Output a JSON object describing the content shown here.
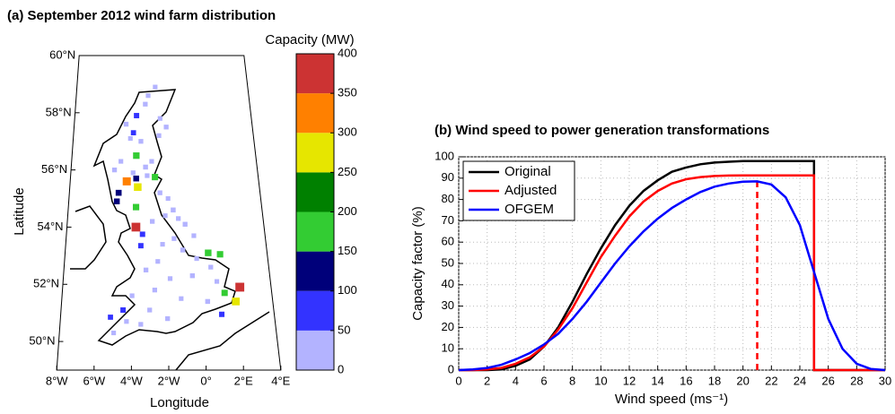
{
  "chart_data": [
    {
      "type": "map-scatter",
      "title": "(a) September 2012 wind farm distribution",
      "xlabel": "Longitude",
      "ylabel": "Latitude",
      "xlim": [
        -8,
        4
      ],
      "ylim": [
        49,
        60
      ],
      "xticks": [
        {
          "value": -8,
          "label": "8°W"
        },
        {
          "value": -6,
          "label": "6°W"
        },
        {
          "value": -4,
          "label": "4°W"
        },
        {
          "value": -2,
          "label": "2°W"
        },
        {
          "value": 0,
          "label": "0°"
        },
        {
          "value": 2,
          "label": "2°E"
        },
        {
          "value": 4,
          "label": "4°E"
        }
      ],
      "yticks": [
        {
          "value": 50,
          "label": "50°N"
        },
        {
          "value": 52,
          "label": "52°N"
        },
        {
          "value": 54,
          "label": "54°N"
        },
        {
          "value": 56,
          "label": "56°N"
        },
        {
          "value": 58,
          "label": "58°N"
        },
        {
          "value": 60,
          "label": "60°N"
        }
      ],
      "colorbar": {
        "label": "Capacity (MW)",
        "bounds": [
          0,
          50,
          100,
          150,
          200,
          250,
          300,
          350,
          400
        ],
        "ticks": [
          0,
          50,
          100,
          150,
          200,
          250,
          300,
          350,
          400
        ],
        "colors": [
          "#b3b3ff",
          "#3333ff",
          "#00007a",
          "#33cc33",
          "#008000",
          "#e6e600",
          "#ff8000",
          "#cc3333"
        ]
      },
      "lon": [
        -3.8,
        -4.0,
        -3.8,
        -4.4,
        -3.7,
        -3.8,
        -2.6,
        -4.9,
        -5.0,
        -3.8,
        -3.8,
        -3.4,
        -3.5,
        0.5,
        1.2,
        1.3,
        2.2,
        1.9,
        -4.5,
        -5.2,
        1.05,
        -2.5,
        -3.0,
        -3.2,
        -2.2,
        -1.8,
        -2.3,
        -4.5,
        -4.2,
        -3.5,
        -4.8,
        -5.2,
        -3.2,
        -2.8,
        -4.0,
        -3.1,
        -2.3,
        -1.8,
        -1.5,
        -1.2,
        -2.0,
        -2.8,
        -0.8,
        -0.3,
        -1.5,
        -2.2,
        -1.0,
        -0.2,
        0.6,
        -2.5,
        -3.2,
        -1.8,
        -0.5,
        0.9,
        -2.7,
        -4.0,
        -1.2,
        0.3,
        -3.0,
        -4.3,
        -5.0,
        -3.5,
        -2.0
      ],
      "lat": [
        57.9,
        57.3,
        56.5,
        55.6,
        55.4,
        55.7,
        55.75,
        55.2,
        54.9,
        54.7,
        54.0,
        53.75,
        53.35,
        53.1,
        53.05,
        51.7,
        51.9,
        51.4,
        51.1,
        50.85,
        50.95,
        58.9,
        58.6,
        58.3,
        57.8,
        57.5,
        57.2,
        57.6,
        57.1,
        57.0,
        56.3,
        56.0,
        56.1,
        56.3,
        55.9,
        55.8,
        55.2,
        55.0,
        54.6,
        54.3,
        54.4,
        54.2,
        54.1,
        53.7,
        53.6,
        53.4,
        53.2,
        52.9,
        52.6,
        52.8,
        52.5,
        52.2,
        52.3,
        52.1,
        51.8,
        51.6,
        51.5,
        51.4,
        51.1,
        50.7,
        50.3,
        50.6,
        50.8
      ],
      "capacity": [
        75,
        60,
        180,
        320,
        280,
        120,
        170,
        130,
        120,
        170,
        380,
        80,
        75,
        190,
        170,
        160,
        390,
        290,
        80,
        60,
        80,
        10,
        15,
        20,
        12,
        25,
        18,
        30,
        10,
        22,
        14,
        26,
        35,
        12,
        20,
        16,
        28,
        10,
        40,
        18,
        12,
        24,
        30,
        15,
        22,
        10,
        36,
        14,
        20,
        12,
        26,
        18,
        30,
        10,
        22,
        16,
        12,
        34,
        20,
        14,
        10,
        18,
        24
      ]
    },
    {
      "type": "line",
      "title": "(b) Wind speed to power generation transformations",
      "xlabel": "Wind speed (ms⁻¹)",
      "ylabel": "Capacity factor (%)",
      "xlim": [
        0,
        30
      ],
      "ylim": [
        0,
        100
      ],
      "xticks": [
        0,
        2,
        4,
        6,
        8,
        10,
        12,
        14,
        16,
        18,
        20,
        22,
        24,
        26,
        28,
        30
      ],
      "yticks": [
        0,
        10,
        20,
        30,
        40,
        50,
        60,
        70,
        80,
        90,
        100
      ],
      "grid": true,
      "legend": "upper left",
      "x": [
        0,
        1,
        2,
        3,
        4,
        5,
        6,
        7,
        8,
        9,
        10,
        11,
        12,
        13,
        14,
        15,
        16,
        17,
        18,
        19,
        20,
        21,
        22,
        23,
        24,
        25,
        25,
        26,
        27,
        28,
        29,
        30
      ],
      "series": [
        {
          "name": "Original",
          "color": "#000000",
          "values": [
            0,
            0,
            0,
            0.3,
            2,
            5,
            11,
            20,
            32,
            45,
            57,
            68,
            77,
            84,
            89,
            93,
            95,
            96.5,
            97.3,
            97.7,
            98,
            98,
            98,
            98,
            98,
            98,
            0,
            0,
            0,
            0,
            0,
            0
          ]
        },
        {
          "name": "Adjusted",
          "color": "#ff0000",
          "values": [
            0,
            0,
            0.3,
            1,
            3,
            6,
            11,
            19,
            29,
            41,
            53,
            63,
            72,
            79,
            84,
            87.5,
            89.5,
            90.5,
            91,
            91.2,
            91.3,
            91.3,
            91.3,
            91.3,
            91.3,
            91.3,
            0,
            0,
            0,
            0,
            0,
            0
          ]
        },
        {
          "name": "OFGEM",
          "color": "#0000ff",
          "values": [
            0,
            0.3,
            1,
            2.5,
            5,
            8,
            12,
            17,
            24,
            32,
            41,
            50,
            58,
            65,
            71,
            76,
            80,
            83.5,
            86,
            87.5,
            88.3,
            88.5,
            87,
            81,
            68,
            46,
            46,
            24,
            10,
            3,
            0.5,
            0
          ]
        }
      ],
      "reference_line": {
        "x": 21,
        "value": 91.3,
        "color": "#ff0000"
      }
    }
  ]
}
